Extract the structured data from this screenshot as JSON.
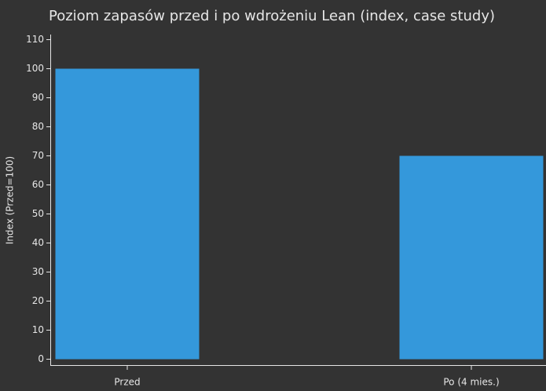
{
  "chart_data": {
    "type": "bar",
    "title": "Poziom zapasów przed i po wdrożeniu Lean (index, case study)",
    "y_label": "Index (Przed=100)",
    "categories": [
      "Przed",
      "Po (4 mies.)"
    ],
    "values": [
      100,
      70
    ],
    "color": "#3498db",
    "ylim": [
      0,
      110
    ],
    "yticks": [
      0,
      10,
      20,
      30,
      40,
      50,
      60,
      70,
      80,
      90,
      100,
      110
    ]
  }
}
